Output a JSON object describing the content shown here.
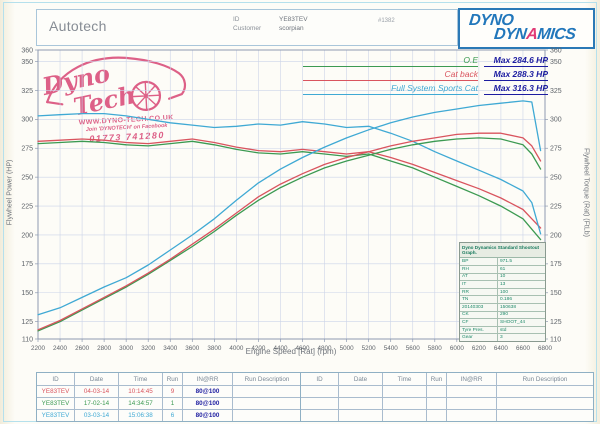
{
  "header": {
    "company": "Autotech",
    "id_label": "ID",
    "id_value": "YE83TEV",
    "customer_label": "Customer",
    "customer_value": "scorpian",
    "ref_number": "#1382",
    "logo_line1": "DYNO",
    "logo_line2_pre": "DYN",
    "logo_line2_a": "A",
    "logo_line2_post": "MICS"
  },
  "watermark": {
    "brand_line1": "Dyno",
    "brand_line2": "Tech",
    "url": "WWW.DYNO-TECH.CO.UK",
    "facebook": "Join 'DYNOTECH' on Facebook",
    "phone": "01773 741280"
  },
  "legend": [
    {
      "label": "O.E",
      "value": "Max 284.6 HP",
      "color": "#3c9a52"
    },
    {
      "label": "Cat back",
      "value": "Max 288.3 HP",
      "color": "#d9545e"
    },
    {
      "label": "Full System Sports Cat",
      "value": "Max 316.3 HP",
      "color": "#3fa9d4"
    }
  ],
  "info_box": {
    "title": "Dyno Dynamics Standard Shootout Graph.",
    "rows": [
      [
        "BP",
        "971.5"
      ],
      [
        "RH",
        "61"
      ],
      [
        "AT",
        "10"
      ],
      [
        "IT",
        "13"
      ],
      [
        "RR",
        "100"
      ],
      [
        "TN",
        "0.186"
      ],
      [
        "20140303",
        "150638"
      ],
      [
        "CK",
        "290"
      ],
      [
        "CF",
        "SHOOT_44"
      ],
      [
        "Tyre Pres.",
        "std"
      ],
      [
        "Gear",
        "3"
      ]
    ]
  },
  "chart_data": {
    "type": "line",
    "xlabel": "Engine Speed [Rat] (rpm)",
    "ylabel_left": "Flywheel Power (HP)",
    "ylabel_right": "Flywheel Torque (Rat) (FtLb)",
    "xlim": [
      2200,
      6800
    ],
    "ylim": [
      110,
      360
    ],
    "grid": true,
    "x_ticks": [
      2200,
      2400,
      2600,
      2800,
      3000,
      3200,
      3400,
      3600,
      3800,
      4000,
      4200,
      4400,
      4600,
      4800,
      5000,
      5200,
      5400,
      5600,
      5800,
      6000,
      6200,
      6400,
      6600,
      6800
    ],
    "y_ticks": [
      110,
      125,
      150,
      175,
      200,
      225,
      250,
      275,
      300,
      325,
      350,
      360
    ],
    "x": [
      2200,
      2400,
      2600,
      2800,
      3000,
      3200,
      3400,
      3600,
      3800,
      4000,
      4200,
      4400,
      4600,
      4800,
      5000,
      5200,
      5400,
      5600,
      5800,
      6000,
      6200,
      6400,
      6600,
      6680,
      6760
    ],
    "series": [
      {
        "name": "O.E torque",
        "slug": "oe-torque-curve",
        "color": "#3c9a52",
        "values": [
          279,
          280,
          281,
          280,
          278,
          277,
          279,
          281,
          278,
          274,
          271,
          270,
          272,
          270,
          268,
          270,
          264,
          258,
          250,
          242,
          234,
          225,
          214,
          205,
          196
        ]
      },
      {
        "name": "Cat back torque",
        "slug": "cat-back-torque-curve",
        "color": "#d9545e",
        "values": [
          281,
          282,
          283,
          282,
          280,
          279,
          281,
          283,
          280,
          276,
          273,
          272,
          274,
          272,
          270,
          272,
          267,
          261,
          254,
          247,
          240,
          232,
          222,
          214,
          206
        ]
      },
      {
        "name": "Full System Sports Cat torque",
        "slug": "full-system-torque-curve",
        "color": "#3fa9d4",
        "values": [
          303,
          304,
          305,
          305,
          303,
          300,
          297,
          295,
          293,
          294,
          296,
          295,
          298,
          296,
          293,
          294,
          288,
          281,
          272,
          264,
          256,
          248,
          238,
          228,
          201
        ]
      },
      {
        "name": "O.E power",
        "slug": "oe-power-curve",
        "color": "#3c9a52",
        "values": [
          117,
          125,
          135,
          145,
          155,
          166,
          178,
          190,
          203,
          217,
          230,
          241,
          250,
          258,
          264,
          269,
          274,
          278,
          281,
          283,
          284,
          283,
          278,
          270,
          257
        ]
      },
      {
        "name": "Cat back power",
        "slug": "cat-back-power-curve",
        "color": "#d9545e",
        "values": [
          118,
          126,
          136,
          146,
          156,
          167,
          179,
          192,
          205,
          219,
          233,
          244,
          253,
          261,
          267,
          272,
          277,
          281,
          284,
          287,
          288,
          288,
          284,
          277,
          264
        ]
      },
      {
        "name": "Full System Sports Cat power",
        "slug": "full-system-power-curve",
        "color": "#3fa9d4",
        "values": [
          131,
          137,
          146,
          155,
          163,
          174,
          187,
          200,
          214,
          230,
          245,
          257,
          267,
          276,
          284,
          291,
          297,
          302,
          306,
          309,
          312,
          314,
          316,
          315,
          273
        ]
      }
    ]
  },
  "run_table": {
    "headers": [
      "ID",
      "Date",
      "Time",
      "Run",
      "IN@RR",
      "Run Description"
    ],
    "rows": [
      {
        "id": "YE83TEV",
        "date": "04-03-14",
        "time": "10:14:45",
        "run": "9",
        "in_rr": "80@100",
        "desc": "",
        "color": "#d9545e"
      },
      {
        "id": "YE83TEV",
        "date": "17-02-14",
        "time": "14:34:57",
        "run": "1",
        "in_rr": "80@100",
        "desc": "",
        "color": "#3c9a52"
      },
      {
        "id": "YE83TEV",
        "date": "03-03-14",
        "time": "15:06:38",
        "run": "6",
        "in_rr": "80@100",
        "desc": "",
        "color": "#3fa9d4"
      }
    ],
    "empty_row_count": 3
  },
  "colors": {
    "max_value_navy": "#1c1ca0",
    "stamp_pink": "#d94b78",
    "logo_blue": "#2277bb",
    "logo_pink": "#e13b76",
    "grid": "#ccd4e8",
    "axis_text": "#5f646a"
  }
}
